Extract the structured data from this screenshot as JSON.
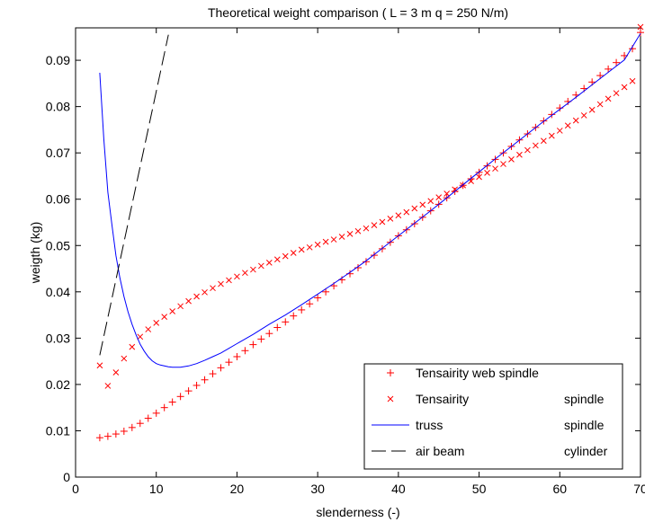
{
  "chart_data": {
    "type": "line",
    "title": "Theoretical weight comparison ( L = 3 m q = 250 N/m)",
    "xlabel": "slenderness (-)",
    "ylabel": "weigth (kg)",
    "xlim": [
      0,
      70
    ],
    "ylim": [
      0,
      0.097
    ],
    "xticks": [
      0,
      10,
      20,
      30,
      40,
      50,
      60,
      70
    ],
    "xtick_labels": [
      "0",
      "10",
      "20",
      "30",
      "40",
      "50",
      "60",
      "70"
    ],
    "yticks": [
      0,
      0.01,
      0.02,
      0.03,
      0.04,
      0.05,
      0.06,
      0.07,
      0.08,
      0.09
    ],
    "ytick_labels": [
      "0",
      "0.01",
      "0.02",
      "0.03",
      "0.04",
      "0.05",
      "0.06",
      "0.07",
      "0.08",
      "0.09"
    ],
    "grid": false,
    "legend_position": "bottom-right",
    "series": [
      {
        "name": "Tensairity web spindle",
        "marker": "plus",
        "color": "#ff0000",
        "x": [
          3,
          4,
          5,
          6,
          7,
          8,
          9,
          10,
          11,
          12,
          13,
          14,
          15,
          16,
          17,
          18,
          19,
          20,
          21,
          22,
          23,
          24,
          25,
          26,
          27,
          28,
          29,
          30,
          31,
          32,
          33,
          34,
          35,
          36,
          37,
          38,
          39,
          40,
          41,
          42,
          43,
          44,
          45,
          46,
          47,
          48,
          49,
          50,
          51,
          52,
          53,
          54,
          55,
          56,
          57,
          58,
          59,
          60,
          61,
          62,
          63,
          64,
          65,
          66,
          67,
          68,
          69,
          70
        ],
        "y": [
          0.0085,
          0.0088,
          0.0093,
          0.0099,
          0.0107,
          0.0116,
          0.0127,
          0.0138,
          0.015,
          0.0162,
          0.0174,
          0.0186,
          0.0198,
          0.021,
          0.0223,
          0.0236,
          0.0248,
          0.026,
          0.0273,
          0.0286,
          0.0298,
          0.031,
          0.0323,
          0.0335,
          0.0348,
          0.0361,
          0.0374,
          0.0387,
          0.04,
          0.0413,
          0.0426,
          0.0439,
          0.0452,
          0.0465,
          0.0479,
          0.0493,
          0.0507,
          0.0521,
          0.0534,
          0.0547,
          0.0561,
          0.0575,
          0.0589,
          0.0603,
          0.0617,
          0.063,
          0.0644,
          0.0658,
          0.0672,
          0.0686,
          0.07,
          0.0714,
          0.0728,
          0.0741,
          0.0755,
          0.0769,
          0.0783,
          0.0797,
          0.0811,
          0.0825,
          0.0839,
          0.0853,
          0.0867,
          0.0881,
          0.0895,
          0.091,
          0.0925,
          0.096
        ]
      },
      {
        "name": "Tensairity spindle",
        "legend_text": [
          "Tensairity",
          "spindle"
        ],
        "marker": "x",
        "color": "#ff0000",
        "x": [
          3,
          4,
          5,
          6,
          7,
          8,
          9,
          10,
          11,
          12,
          13,
          14,
          15,
          16,
          17,
          18,
          19,
          20,
          21,
          22,
          23,
          24,
          25,
          26,
          27,
          28,
          29,
          30,
          31,
          32,
          33,
          34,
          35,
          36,
          37,
          38,
          39,
          40,
          41,
          42,
          43,
          44,
          45,
          46,
          47,
          48,
          49,
          50,
          51,
          52,
          53,
          54,
          55,
          56,
          57,
          58,
          59,
          60,
          61,
          62,
          63,
          64,
          65,
          66,
          67,
          68,
          69,
          70
        ],
        "y": [
          0.0241,
          0.0197,
          0.0226,
          0.0256,
          0.0281,
          0.0303,
          0.0319,
          0.0333,
          0.0346,
          0.0358,
          0.0369,
          0.038,
          0.039,
          0.0399,
          0.0408,
          0.0417,
          0.0425,
          0.0433,
          0.0441,
          0.0448,
          0.0456,
          0.0463,
          0.047,
          0.0477,
          0.0484,
          0.0491,
          0.0496,
          0.0502,
          0.0508,
          0.0513,
          0.0519,
          0.0525,
          0.0531,
          0.0537,
          0.0544,
          0.0551,
          0.0558,
          0.0565,
          0.0572,
          0.058,
          0.0588,
          0.0596,
          0.0604,
          0.0612,
          0.0621,
          0.063,
          0.0639,
          0.0648,
          0.0657,
          0.0666,
          0.0676,
          0.0686,
          0.0696,
          0.0706,
          0.0716,
          0.0726,
          0.0737,
          0.0748,
          0.0759,
          0.077,
          0.0781,
          0.0793,
          0.0805,
          0.0817,
          0.0829,
          0.0842,
          0.0855,
          0.0972
        ]
      },
      {
        "name": "truss spindle",
        "legend_text": [
          "truss",
          "spindle"
        ],
        "style": "solid",
        "color": "#0000ff",
        "x": [
          3,
          3.5,
          4,
          4.5,
          5,
          5.5,
          6,
          6.5,
          7,
          7.5,
          8,
          8.5,
          9,
          9.5,
          10,
          10.5,
          11,
          11.5,
          12,
          12.5,
          13,
          14,
          15,
          16,
          17,
          18,
          19,
          20,
          22,
          24,
          26,
          28,
          30,
          32,
          34,
          36,
          38,
          40,
          42,
          44,
          46,
          48,
          50,
          52,
          54,
          56,
          58,
          60,
          62,
          64,
          66,
          68,
          70
        ],
        "y": [
          0.0873,
          0.073,
          0.0615,
          0.0545,
          0.0478,
          0.043,
          0.039,
          0.0357,
          0.033,
          0.0307,
          0.0287,
          0.0272,
          0.026,
          0.0251,
          0.0245,
          0.0242,
          0.024,
          0.0238,
          0.0237,
          0.0237,
          0.0237,
          0.024,
          0.0245,
          0.0252,
          0.026,
          0.0268,
          0.0278,
          0.0288,
          0.0308,
          0.033,
          0.035,
          0.0372,
          0.0395,
          0.0418,
          0.0442,
          0.0467,
          0.0494,
          0.0521,
          0.0548,
          0.0575,
          0.0603,
          0.0631,
          0.0659,
          0.0687,
          0.0714,
          0.0741,
          0.0768,
          0.0794,
          0.082,
          0.0847,
          0.0874,
          0.0901,
          0.0958
        ]
      },
      {
        "name": "air beam cylinder",
        "legend_text": [
          "air beam",
          "cylinder"
        ],
        "style": "dashed",
        "color": "#000000",
        "x": [
          3,
          11.5
        ],
        "y": [
          0.0263,
          0.0955
        ]
      }
    ]
  }
}
